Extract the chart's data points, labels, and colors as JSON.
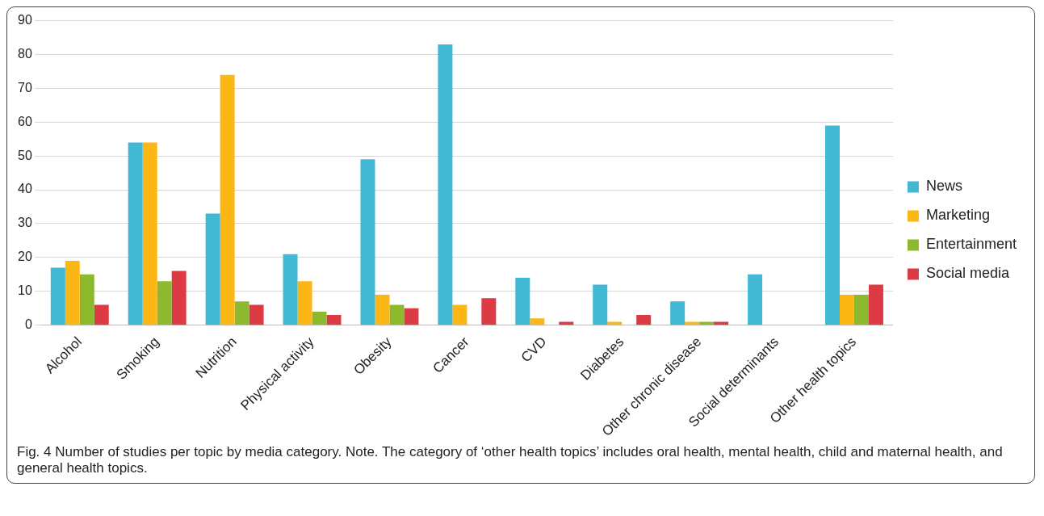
{
  "chart_data": {
    "type": "bar",
    "categories": [
      "Alcohol",
      "Smoking",
      "Nutrition",
      "Physical activity",
      "Obesity",
      "Cancer",
      "CVD",
      "Diabetes",
      "Other chronic disease",
      "Social determinants",
      "Other health topics"
    ],
    "series": [
      {
        "name": "News",
        "color": "#41b8d4",
        "values": [
          17,
          54,
          33,
          21,
          49,
          83,
          14,
          12,
          7,
          15,
          59
        ]
      },
      {
        "name": "Marketing",
        "color": "#fdb714",
        "values": [
          19,
          54,
          74,
          13,
          9,
          6,
          2,
          1,
          1,
          0,
          9
        ]
      },
      {
        "name": "Entertainment",
        "color": "#8cb92d",
        "values": [
          15,
          13,
          7,
          4,
          6,
          0,
          0,
          0,
          1,
          0,
          9
        ]
      },
      {
        "name": "Social media",
        "color": "#dc3a45",
        "values": [
          6,
          16,
          6,
          3,
          5,
          8,
          1,
          3,
          1,
          0,
          12
        ]
      }
    ],
    "ylim": [
      0,
      90
    ],
    "yticks": [
      0,
      10,
      20,
      30,
      40,
      50,
      60,
      70,
      80,
      90
    ],
    "grid": "y",
    "legend": "right",
    "annotations": [
      "Fig. 4 Number of studies per topic by media category. Note. The category of ‘other health topics’ includes oral health, mental health, child and maternal health, and general health topics."
    ]
  }
}
